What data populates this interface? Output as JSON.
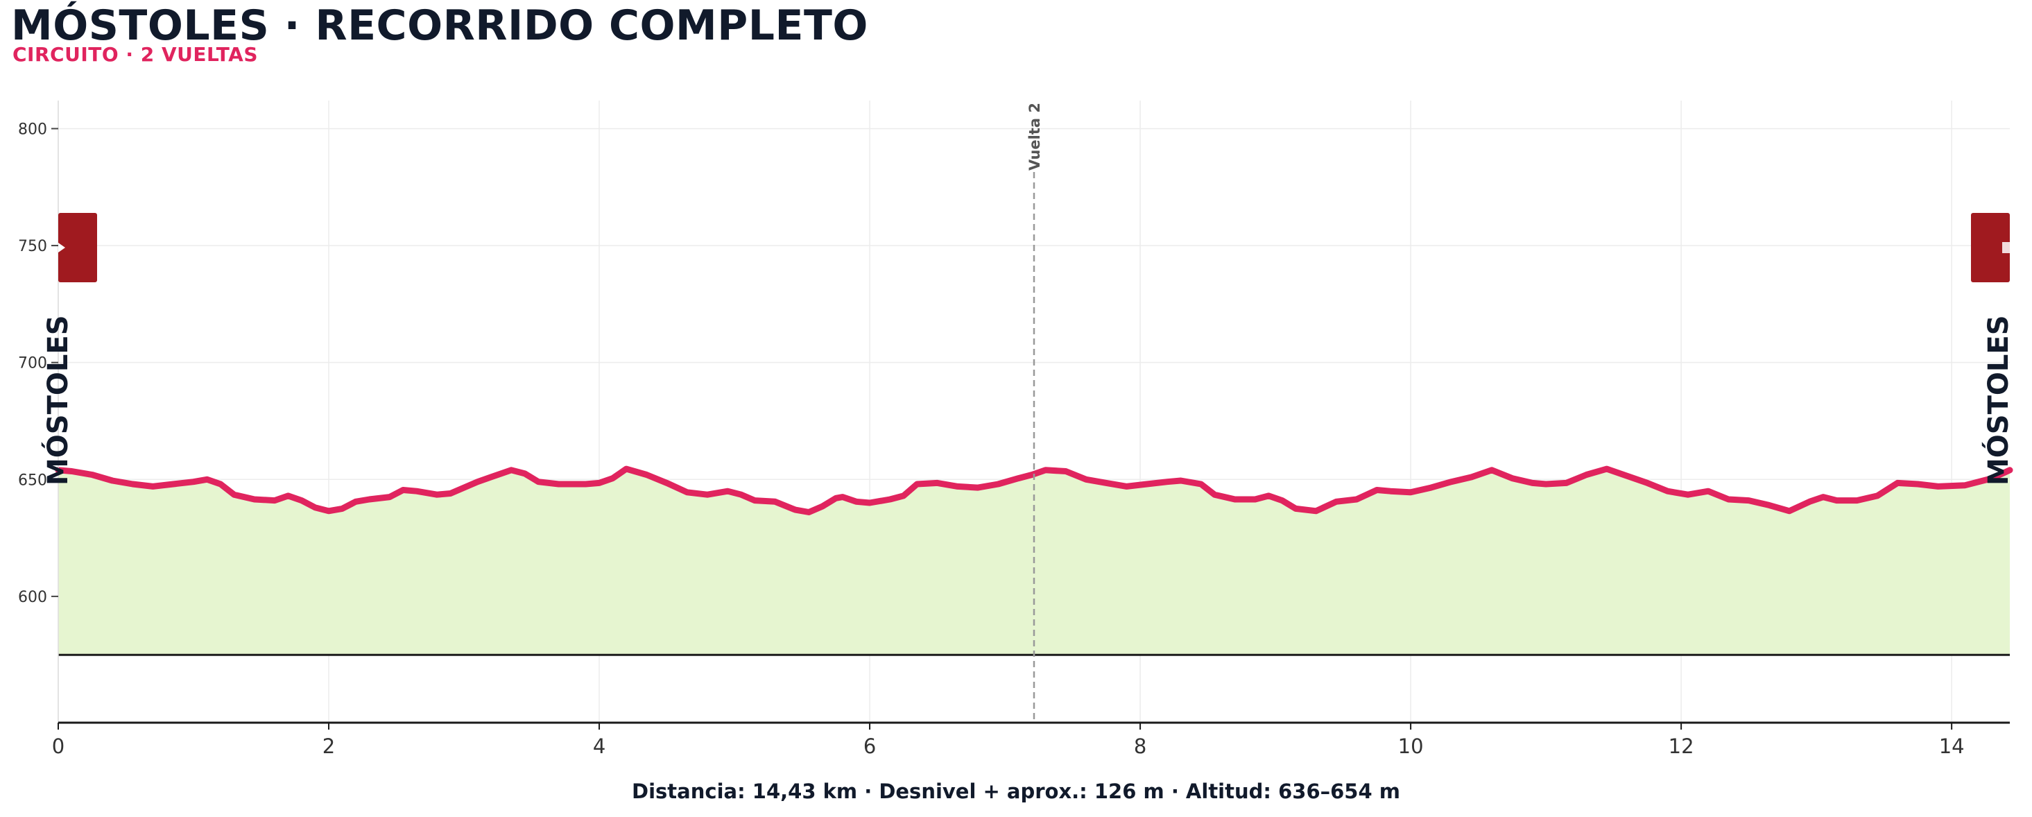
{
  "header": {
    "title": "MÓSTOLES · RECORRIDO COMPLETO",
    "subtitle": "CIRCUITO · 2 VUELTAS"
  },
  "footer": {
    "summary": "Distancia: 14,43 km · Desnivel + aprox.: 126 m · Altitud: 636–654 m"
  },
  "chart_data": {
    "type": "area",
    "title": "MÓSTOLES · RECORRIDO COMPLETO",
    "subtitle": "CIRCUITO · 2 VUELTAS",
    "xlabel": "",
    "ylabel": "",
    "xlim": [
      0,
      14.43
    ],
    "ylim": [
      546,
      812
    ],
    "x_ticks": [
      0,
      2,
      4,
      6,
      8,
      10,
      12,
      14
    ],
    "y_ticks": [
      600,
      650,
      700,
      750,
      800
    ],
    "grid": true,
    "baseline": 575,
    "colors": {
      "line": "#e0245e",
      "fill": "#e6f5d0",
      "marker": "#a01a1f",
      "text": "#111a2b"
    },
    "series": [
      {
        "x": [
          0,
          0.1,
          0.25,
          0.4,
          0.55,
          0.7,
          0.85,
          1.0,
          1.1,
          1.2,
          1.3,
          1.45,
          1.6,
          1.7,
          1.8,
          1.9,
          2.0,
          2.1,
          2.2,
          2.3,
          2.45,
          2.55,
          2.65,
          2.8,
          2.9,
          3.0,
          3.1,
          3.2,
          3.35,
          3.45,
          3.55,
          3.7,
          3.8,
          3.9,
          4.0,
          4.1,
          4.2,
          4.35,
          4.5,
          4.65,
          4.8,
          4.95,
          5.05,
          5.15,
          5.3,
          5.45,
          5.55,
          5.65,
          5.75,
          5.8,
          5.9,
          6.0,
          6.15,
          6.25,
          6.35,
          6.5,
          6.65,
          6.8,
          6.95,
          7.1,
          7.2,
          7.3,
          7.45,
          7.6,
          7.75,
          7.9,
          8.05,
          8.2,
          8.3,
          8.45,
          8.55,
          8.7,
          8.85,
          8.95,
          9.05,
          9.15,
          9.3,
          9.45,
          9.6,
          9.75,
          9.85,
          10.0,
          10.15,
          10.3,
          10.45,
          10.6,
          10.75,
          10.9,
          11.0,
          11.15,
          11.3,
          11.45,
          11.6,
          11.75,
          11.9,
          12.05,
          12.2,
          12.35,
          12.5,
          12.65,
          12.8,
          12.95,
          13.05,
          13.15,
          13.3,
          13.45,
          13.6,
          13.75,
          13.9,
          14.1,
          14.3,
          14.43
        ],
        "values": [
          654,
          653.5,
          652,
          649.5,
          648,
          647,
          648,
          649,
          650,
          648,
          643.5,
          641.5,
          641,
          643,
          641,
          638,
          636.5,
          637.5,
          640.5,
          641.5,
          642.5,
          645.5,
          645,
          643.5,
          644,
          646.5,
          649,
          651,
          654,
          652.5,
          649,
          648,
          648,
          648,
          648.5,
          650.5,
          654.5,
          652,
          648.5,
          644.5,
          643.5,
          645,
          643.5,
          641,
          640.5,
          637,
          636,
          638.5,
          642,
          642.5,
          640.5,
          640,
          641.5,
          643,
          648,
          648.5,
          647,
          646.5,
          648,
          650.5,
          652,
          654,
          653.5,
          650,
          648.5,
          647,
          648,
          649,
          649.5,
          648,
          643.5,
          641.5,
          641.5,
          643,
          641,
          637.5,
          636.5,
          640.5,
          641.5,
          645.5,
          645,
          644.5,
          646.5,
          649,
          651,
          654,
          650.5,
          648.5,
          648,
          648.5,
          652,
          654.5,
          651.5,
          648.5,
          645,
          643.5,
          645,
          641.5,
          641,
          639,
          636.5,
          640.5,
          642.5,
          641,
          641,
          643,
          648.5,
          648,
          647,
          647.5,
          650.5,
          654
        ]
      }
    ],
    "annotations": [
      {
        "text": "Vuelta 2",
        "x": 7.215
      },
      {
        "text": "MÓSTOLES",
        "x": 0
      },
      {
        "text": "MÓSTOLES",
        "x": 14.43
      }
    ]
  }
}
